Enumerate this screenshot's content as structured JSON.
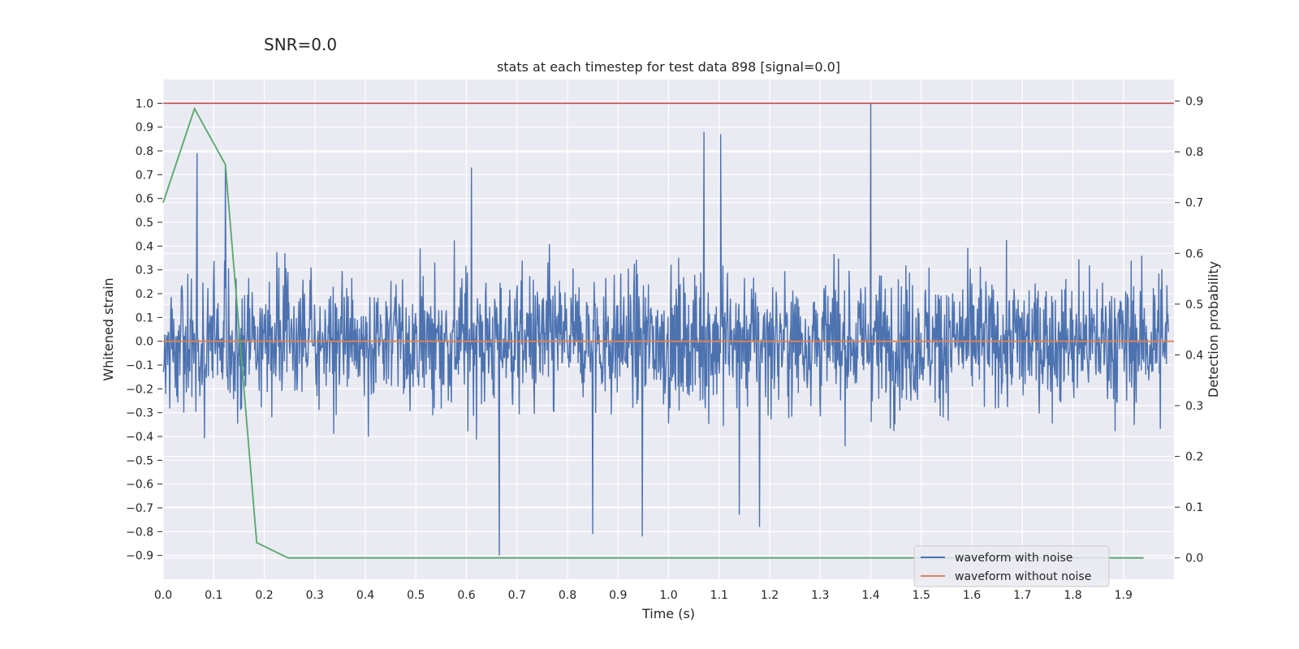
{
  "chart_data": {
    "type": "line",
    "suptitle": "SNR=0.0",
    "title": "stats at each timestep for test data 898 [signal=0.0]",
    "xlabel": "Time (s)",
    "ylabel": "Whitened strain",
    "y2label": "Detection probability",
    "xlim": [
      0.0,
      2.0
    ],
    "ylim": [
      -1.0,
      1.1
    ],
    "y2lim": [
      -0.042,
      0.9425
    ],
    "x_ticks": [
      "0.0",
      "0.1",
      "0.2",
      "0.3",
      "0.4",
      "0.5",
      "0.6",
      "0.7",
      "0.8",
      "0.9",
      "1.0",
      "1.1",
      "1.2",
      "1.3",
      "1.4",
      "1.5",
      "1.6",
      "1.7",
      "1.8",
      "1.9"
    ],
    "y_ticks": [
      "1.0",
      "0.9",
      "0.8",
      "0.7",
      "0.6",
      "0.5",
      "0.4",
      "0.3",
      "0.2",
      "0.1",
      "0.0",
      "−0.1",
      "−0.2",
      "−0.3",
      "−0.4",
      "−0.5",
      "−0.6",
      "−0.7",
      "−0.8",
      "−0.9"
    ],
    "y2_ticks": [
      "0.9",
      "0.8",
      "0.7",
      "0.6",
      "0.5",
      "0.4",
      "0.3",
      "0.2",
      "0.1",
      "0.0"
    ],
    "grid": true,
    "legend_position": "lower-right",
    "colors": {
      "background": "#eaeaf2",
      "grid": "#ffffff",
      "noisy": "#4c72b0",
      "clean": "#dd8452",
      "probability": "#55a868",
      "threshold": "#c44e52"
    },
    "series": [
      {
        "name": "waveform with noise",
        "axis": "left",
        "note": "dense noise, roughly within ±0.5 with spikes",
        "spikes": [
          {
            "x": 0.067,
            "y": 0.79
          },
          {
            "x": 0.123,
            "y": 0.73
          },
          {
            "x": 0.61,
            "y": 0.73
          },
          {
            "x": 0.665,
            "y": -0.9
          },
          {
            "x": 0.85,
            "y": -0.81
          },
          {
            "x": 0.948,
            "y": -0.82
          },
          {
            "x": 1.07,
            "y": 0.88
          },
          {
            "x": 1.103,
            "y": 0.87
          },
          {
            "x": 1.18,
            "y": -0.78
          },
          {
            "x": 1.14,
            "y": -0.73
          },
          {
            "x": 1.4,
            "y": 1.0
          }
        ]
      },
      {
        "name": "waveform without noise",
        "axis": "left",
        "x": [
          0.0,
          2.0
        ],
        "y": [
          0.0,
          0.0
        ]
      },
      {
        "axis": "right",
        "x": [
          0.0,
          0.062,
          0.123,
          0.185,
          0.247,
          0.31,
          0.37,
          0.43,
          0.5,
          0.6,
          0.7,
          0.8,
          0.9,
          1.0,
          1.1,
          1.2,
          1.3,
          1.4,
          1.5,
          1.6,
          1.7,
          1.8,
          1.94
        ],
        "y": [
          0.7,
          0.885,
          0.775,
          0.03,
          0.0,
          0.0,
          0.0,
          0.0,
          0.0,
          0.0,
          0.0,
          0.0,
          0.0,
          0.0,
          0.0,
          0.0,
          0.0,
          0.0,
          0.0,
          0.0,
          0.0,
          0.0,
          0.0
        ]
      },
      {
        "axis": "left",
        "x": [
          0.0,
          2.0
        ],
        "y": [
          1.0,
          1.0
        ]
      }
    ]
  }
}
